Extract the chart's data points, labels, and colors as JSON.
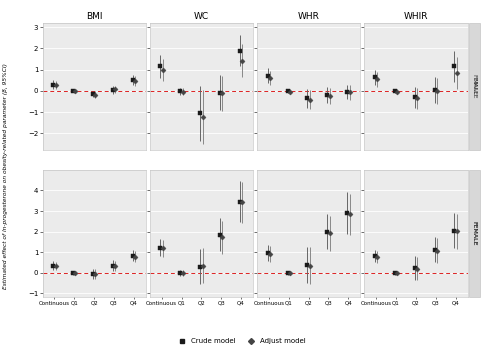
{
  "panels": [
    "BMI",
    "WC",
    "WHR",
    "WHIR"
  ],
  "x_labels": [
    "Continuous",
    "Q1",
    "Q2",
    "Q3",
    "Q4"
  ],
  "male_ylim": [
    -2.8,
    3.2
  ],
  "female_ylim": [
    -1.2,
    5.0
  ],
  "male_yticks": [
    -2,
    -1,
    0,
    1,
    2,
    3
  ],
  "female_yticks": [
    -1,
    0,
    1,
    2,
    3,
    4
  ],
  "crude_color": "#1a1a1a",
  "adjust_color": "#444444",
  "ci_color": "#888888",
  "ref_line_color": "#dd2222",
  "bg_color": "#ebebeb",
  "sep_color": "#cccccc",
  "crude_marker": "s",
  "adjust_marker": "D",
  "data": {
    "male": {
      "BMI": {
        "crude": {
          "est": [
            0.3,
            0.0,
            -0.13,
            0.05,
            0.52
          ],
          "lo": [
            0.1,
            -0.05,
            -0.28,
            -0.15,
            0.28
          ],
          "hi": [
            0.5,
            0.05,
            0.02,
            0.25,
            0.76
          ]
        },
        "adjust": {
          "est": [
            0.27,
            -0.02,
            -0.17,
            0.07,
            0.46
          ],
          "lo": [
            0.08,
            -0.1,
            -0.32,
            -0.1,
            0.22
          ],
          "hi": [
            0.46,
            0.06,
            -0.02,
            0.24,
            0.7
          ]
        }
      },
      "WC": {
        "crude": {
          "est": [
            1.15,
            -0.02,
            -1.05,
            -0.08,
            1.9
          ],
          "lo": [
            0.6,
            -0.18,
            -2.35,
            -0.9,
            1.15
          ],
          "hi": [
            1.7,
            0.14,
            0.25,
            0.74,
            2.65
          ]
        },
        "adjust": {
          "est": [
            0.97,
            -0.04,
            -1.22,
            -0.12,
            1.42
          ],
          "lo": [
            0.45,
            -0.2,
            -2.5,
            -0.95,
            0.65
          ],
          "hi": [
            1.49,
            0.12,
            0.06,
            0.71,
            2.19
          ]
        }
      },
      "WHR": {
        "crude": {
          "est": [
            0.72,
            -0.02,
            -0.35,
            -0.2,
            -0.05
          ],
          "lo": [
            0.38,
            -0.12,
            -0.8,
            -0.58,
            -0.4
          ],
          "hi": [
            1.06,
            0.08,
            0.1,
            0.18,
            0.3
          ]
        },
        "adjust": {
          "est": [
            0.62,
            -0.03,
            -0.42,
            -0.22,
            -0.07
          ],
          "lo": [
            0.28,
            -0.13,
            -0.87,
            -0.6,
            -0.42
          ],
          "hi": [
            0.96,
            0.07,
            0.03,
            0.16,
            0.28
          ]
        }
      },
      "WHIR": {
        "crude": {
          "est": [
            0.65,
            -0.02,
            -0.3,
            0.05,
            1.15
          ],
          "lo": [
            0.3,
            -0.12,
            -0.8,
            -0.55,
            0.4
          ],
          "hi": [
            1.0,
            0.08,
            0.2,
            0.65,
            1.9
          ]
        },
        "adjust": {
          "est": [
            0.55,
            -0.03,
            -0.35,
            0.0,
            0.85
          ],
          "lo": [
            0.2,
            -0.13,
            -0.85,
            -0.6,
            0.1
          ],
          "hi": [
            0.9,
            0.07,
            0.15,
            0.6,
            1.6
          ]
        }
      }
    },
    "female": {
      "BMI": {
        "crude": {
          "est": [
            0.35,
            0.0,
            -0.05,
            0.35,
            0.82
          ],
          "lo": [
            0.15,
            -0.1,
            -0.28,
            0.1,
            0.55
          ],
          "hi": [
            0.55,
            0.1,
            0.18,
            0.6,
            1.09
          ]
        },
        "adjust": {
          "est": [
            0.32,
            -0.02,
            -0.07,
            0.33,
            0.78
          ],
          "lo": [
            0.12,
            -0.12,
            -0.3,
            0.08,
            0.51
          ],
          "hi": [
            0.52,
            0.08,
            0.16,
            0.58,
            1.05
          ]
        }
      },
      "WC": {
        "crude": {
          "est": [
            1.22,
            0.0,
            0.3,
            1.85,
            3.45
          ],
          "lo": [
            0.8,
            -0.15,
            -0.55,
            1.05,
            2.45
          ],
          "hi": [
            1.64,
            0.15,
            1.15,
            2.65,
            4.45
          ]
        },
        "adjust": {
          "est": [
            1.18,
            -0.03,
            0.33,
            1.73,
            3.43
          ],
          "lo": [
            0.76,
            -0.18,
            -0.52,
            0.93,
            2.43
          ],
          "hi": [
            1.6,
            0.12,
            1.18,
            2.53,
            4.43
          ]
        }
      },
      "WHR": {
        "crude": {
          "est": [
            0.95,
            0.0,
            0.38,
            2.0,
            2.9
          ],
          "lo": [
            0.55,
            -0.1,
            -0.5,
            1.15,
            1.9
          ],
          "hi": [
            1.35,
            0.1,
            1.26,
            2.85,
            3.9
          ]
        },
        "adjust": {
          "est": [
            0.9,
            -0.02,
            0.35,
            1.92,
            2.85
          ],
          "lo": [
            0.5,
            -0.12,
            -0.53,
            1.07,
            1.85
          ],
          "hi": [
            1.3,
            0.08,
            1.23,
            2.77,
            3.85
          ]
        }
      },
      "WHIR": {
        "crude": {
          "est": [
            0.8,
            0.0,
            0.22,
            1.12,
            2.05
          ],
          "lo": [
            0.5,
            -0.1,
            -0.35,
            0.5,
            1.2
          ],
          "hi": [
            1.1,
            0.1,
            0.79,
            1.74,
            2.9
          ]
        },
        "adjust": {
          "est": [
            0.75,
            -0.02,
            0.2,
            1.08,
            2.02
          ],
          "lo": [
            0.45,
            -0.12,
            -0.37,
            0.46,
            1.17
          ],
          "hi": [
            1.05,
            0.08,
            0.77,
            1.7,
            2.87
          ]
        }
      }
    }
  }
}
